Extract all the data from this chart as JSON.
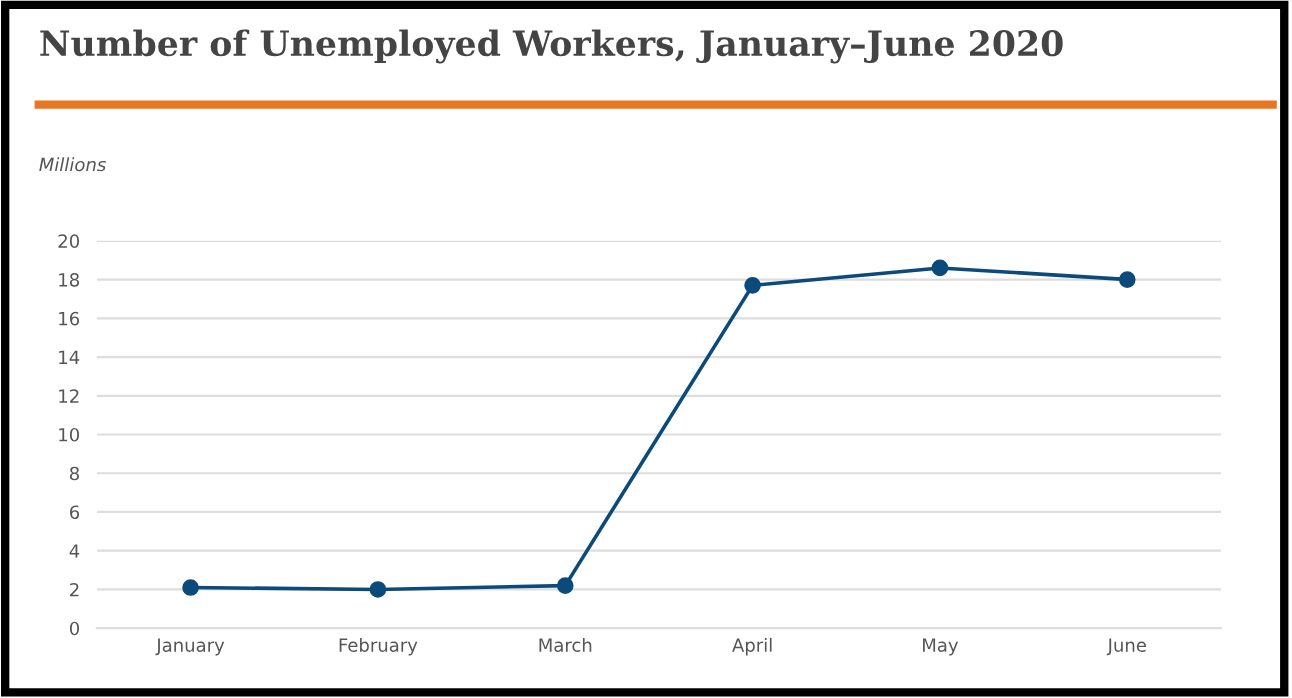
{
  "chart_data": {
    "type": "line",
    "title": "Number of Unemployed Workers, January–June 2020",
    "ylabel": "Millions",
    "categories": [
      "January",
      "February",
      "March",
      "April",
      "May",
      "June"
    ],
    "series": [
      {
        "color": "#0b4a7a",
        "values": [
          2.1,
          2.0,
          2.2,
          17.7,
          18.6,
          18.0
        ]
      }
    ],
    "ylim": [
      0,
      20
    ],
    "yticks": [
      0,
      2,
      4,
      6,
      8,
      10,
      12,
      14,
      16,
      18,
      20
    ],
    "grid": "y",
    "marker": "circle",
    "line_style": "solid"
  }
}
